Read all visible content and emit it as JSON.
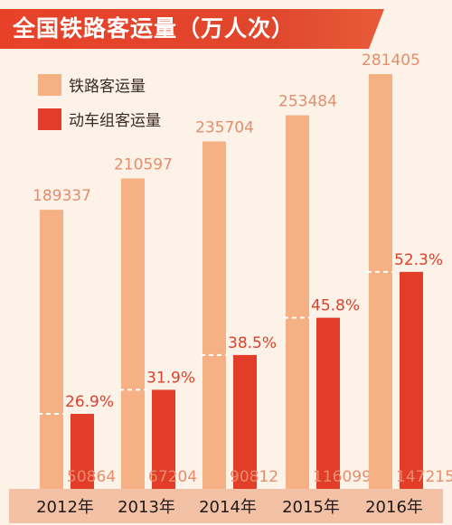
{
  "title": "全国铁路客运量（万人次）",
  "colors": {
    "railway": "#f5b183",
    "emu": "#e23d28",
    "background": "#fdf2e8",
    "year_band": "#f3c2a6",
    "title_bar": "#e8412a"
  },
  "chart_data": {
    "type": "bar",
    "categories": [
      "2012年",
      "2013年",
      "2014年",
      "2015年",
      "2016年"
    ],
    "series": [
      {
        "name": "铁路客运量",
        "values": [
          189337,
          210597,
          235704,
          253484,
          281405
        ]
      },
      {
        "name": "动车组客运量",
        "values": [
          50864,
          67204,
          90812,
          116099,
          147215
        ]
      }
    ],
    "share_labels": [
      "26.9%",
      "31.9%",
      "38.5%",
      "45.8%",
      "52.3%"
    ],
    "value_labels": {
      "railway": [
        "189337",
        "210597",
        "235704",
        "253484",
        "281405"
      ],
      "emu": [
        "50864",
        "67204",
        "90812",
        "116099",
        "147215"
      ]
    },
    "legend_position": "top-left",
    "ylim": [
      0,
      281405
    ],
    "grid": false
  }
}
